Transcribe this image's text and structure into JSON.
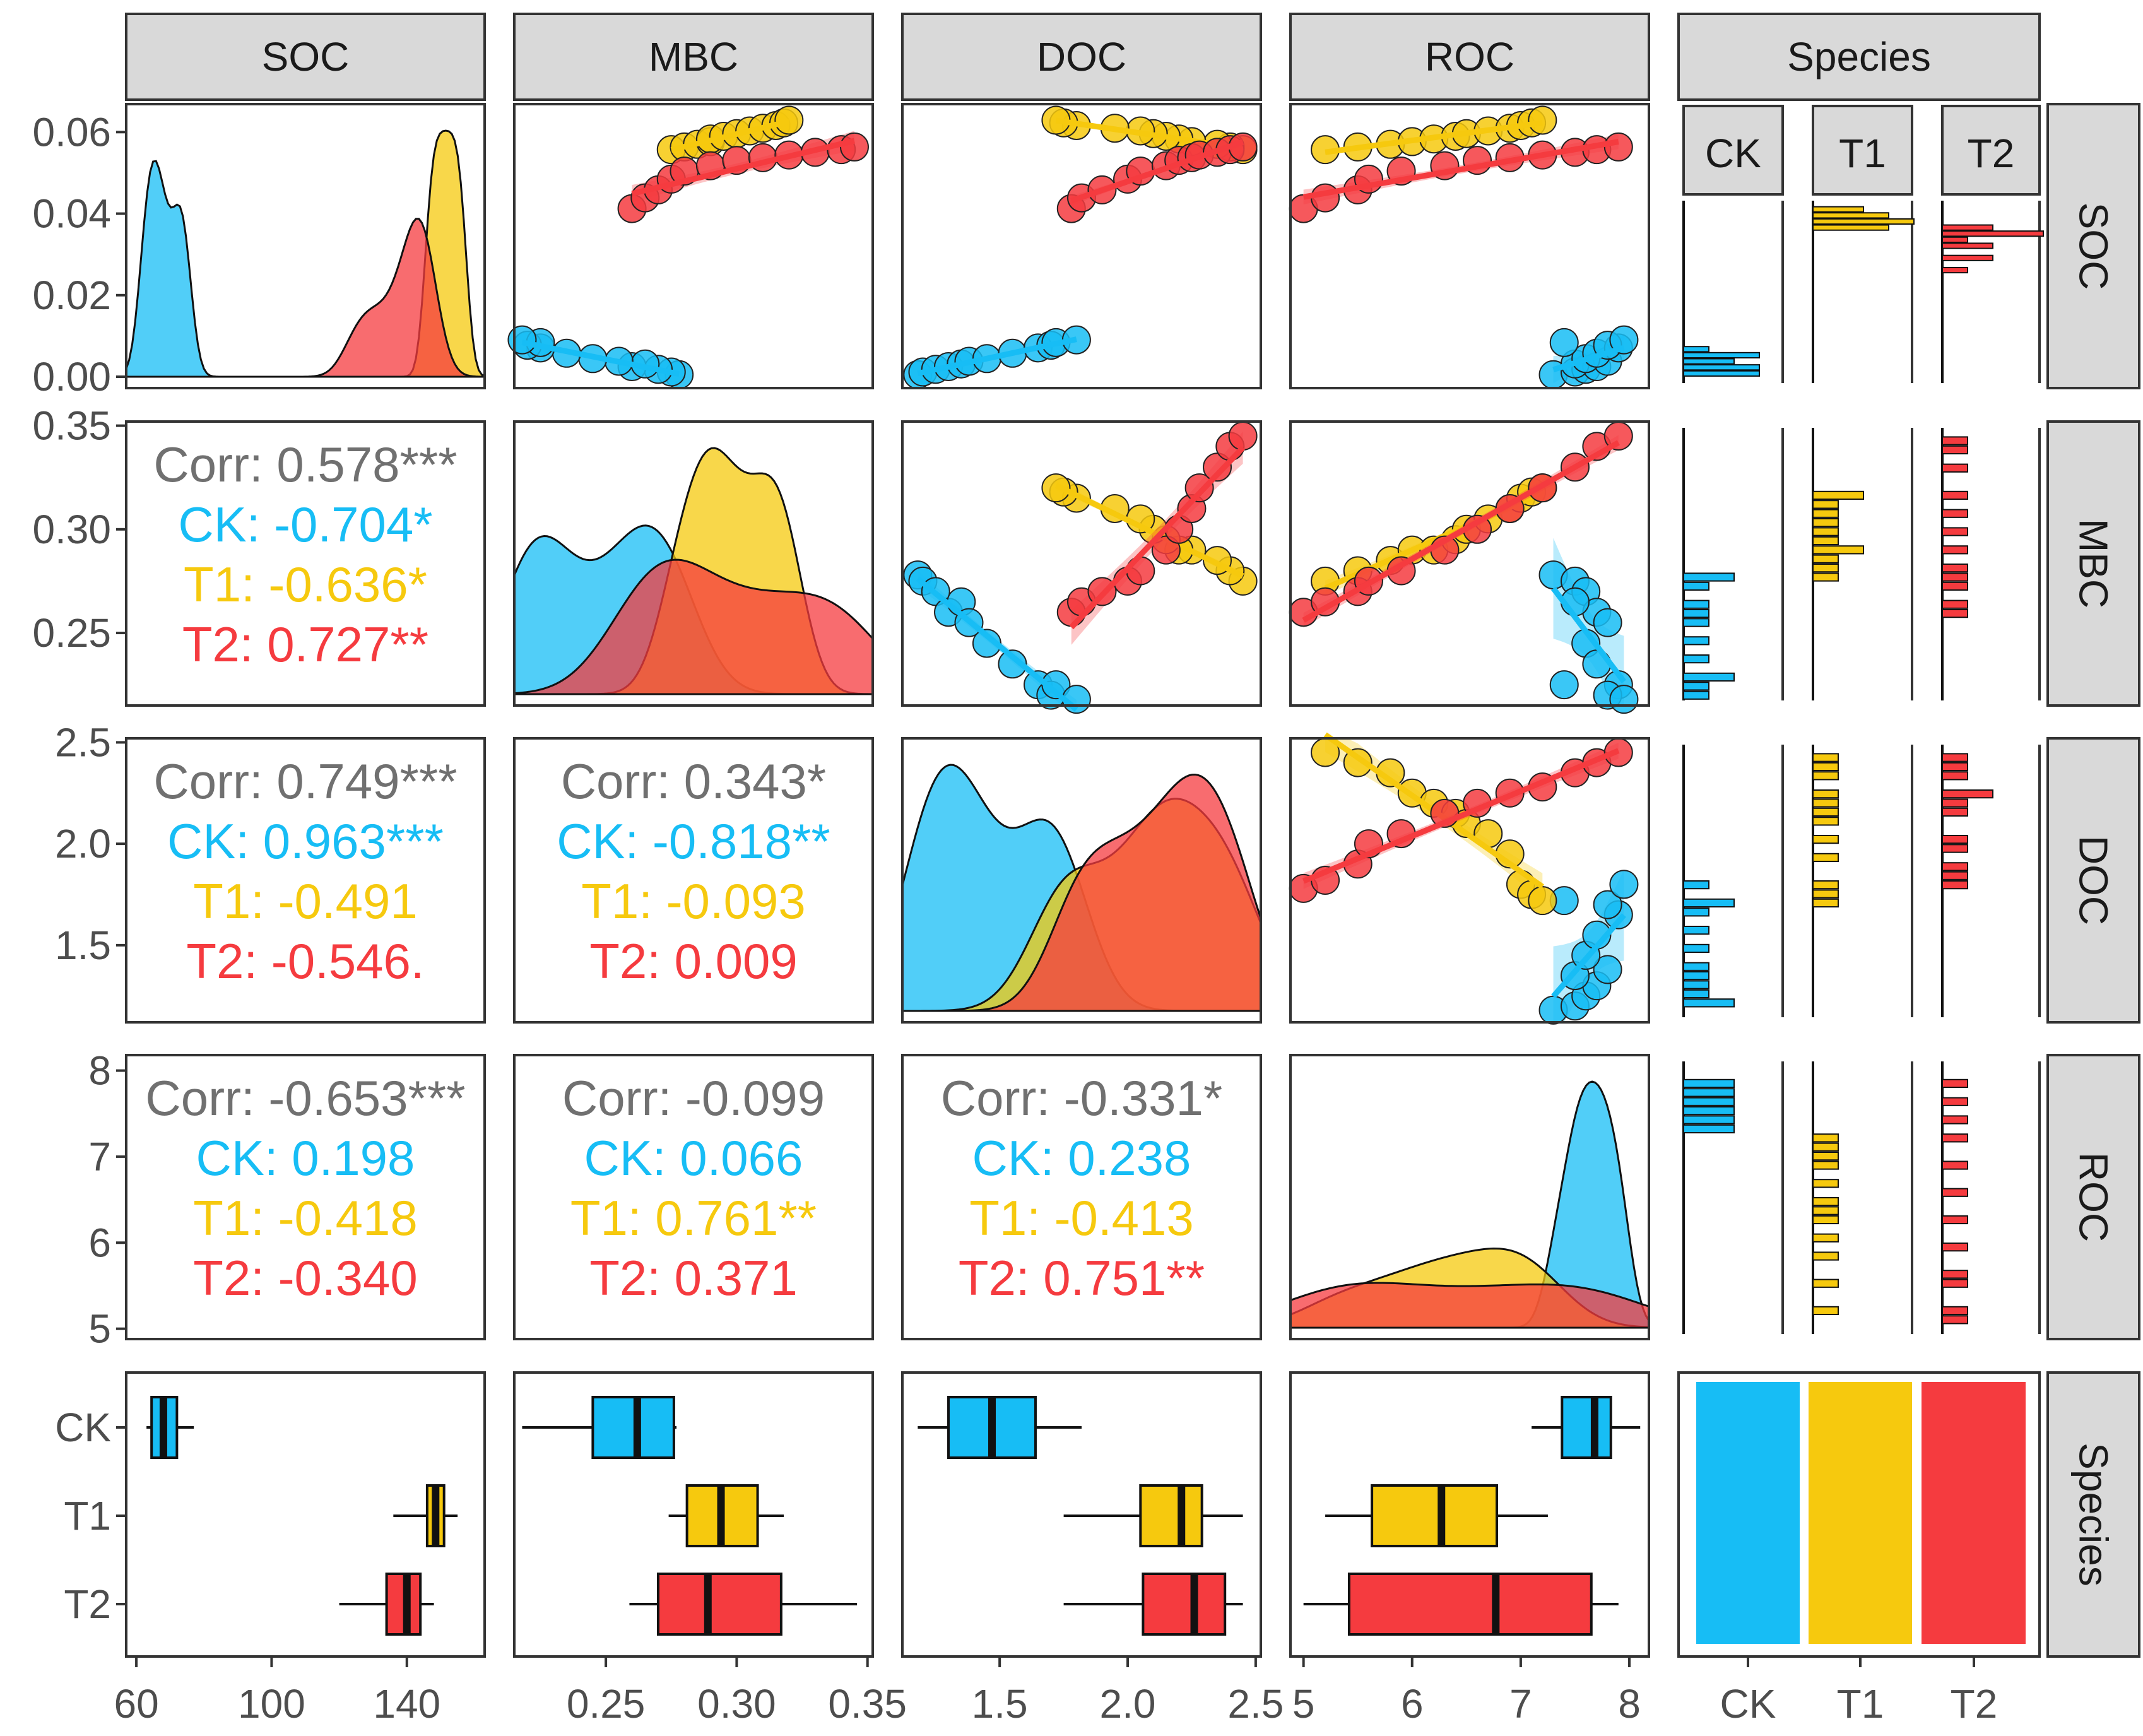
{
  "chart_data": {
    "type": "scatter",
    "title": "",
    "variables": [
      "SOC",
      "MBC",
      "DOC",
      "ROC",
      "Species"
    ],
    "groups": [
      "CK",
      "T1",
      "T2"
    ],
    "colors": {
      "CK": "#17BDF5",
      "T1": "#F6C90E",
      "T2": "#F53B3F",
      "corr": "#707070"
    },
    "column_headers": [
      "SOC",
      "MBC",
      "DOC",
      "ROC",
      "Species"
    ],
    "row_headers": [
      "SOC",
      "MBC",
      "DOC",
      "ROC",
      "Species"
    ],
    "sub_headers": [
      "CK",
      "T1",
      "T2"
    ],
    "axis_ranges": {
      "SOC": [
        57,
        163
      ],
      "MBC": [
        0.215,
        0.352
      ],
      "DOC": [
        1.12,
        2.52
      ],
      "ROC": [
        4.88,
        8.18
      ]
    },
    "density_y_ticks": [
      "0.00",
      "0.02",
      "0.04",
      "0.06"
    ],
    "x_ticks": {
      "SOC": [
        "60",
        "100",
        "140"
      ],
      "MBC": [
        "0.25",
        "0.30",
        "0.35"
      ],
      "DOC": [
        "1.5",
        "2.0",
        "2.5"
      ],
      "ROC": [
        "5",
        "6",
        "7",
        "8"
      ],
      "Species": [
        "CK",
        "T1",
        "T2"
      ]
    },
    "y_ticks": {
      "MBC": [
        "0.25",
        "0.30",
        "0.35"
      ],
      "DOC": [
        "1.5",
        "2.0",
        "2.5"
      ],
      "ROC": [
        "5",
        "6",
        "7",
        "8"
      ],
      "Species": [
        "CK",
        "T1",
        "T2"
      ]
    },
    "correlations": {
      "MBC_SOC": [
        "Corr: 0.578***",
        "CK: -0.704*",
        "T1: -0.636*",
        "T2: 0.727**"
      ],
      "DOC_SOC": [
        "Corr: 0.749***",
        "CK: 0.963***",
        "T1: -0.491",
        "T2: -0.546."
      ],
      "DOC_MBC": [
        "Corr: 0.343*",
        "CK: -0.818**",
        "T1: -0.093",
        "T2: 0.009"
      ],
      "ROC_SOC": [
        "Corr: -0.653***",
        "CK: 0.198",
        "T1: -0.418",
        "T2: -0.340"
      ],
      "ROC_MBC": [
        "Corr: -0.099",
        "CK: 0.066",
        "T1: 0.761**",
        "T2: 0.371"
      ],
      "ROC_DOC": [
        "Corr: -0.331*",
        "CK: 0.238",
        "T1: -0.413",
        "T2: 0.751**"
      ]
    },
    "samples": {
      "CK": [
        [
          62,
          0.278,
          1.18,
          7.3
        ],
        [
          63,
          0.275,
          1.2,
          7.5
        ],
        [
          64,
          0.27,
          1.25,
          7.6
        ],
        [
          65,
          0.26,
          1.3,
          7.7
        ],
        [
          66,
          0.265,
          1.35,
          7.5
        ],
        [
          67,
          0.255,
          1.38,
          7.8
        ],
        [
          68,
          0.245,
          1.45,
          7.6
        ],
        [
          70,
          0.235,
          1.55,
          7.7
        ],
        [
          72,
          0.225,
          1.65,
          7.9
        ],
        [
          73,
          0.22,
          1.7,
          7.8
        ],
        [
          74,
          0.225,
          1.72,
          7.4
        ],
        [
          75,
          0.218,
          1.8,
          7.95
        ]
      ],
      "T1": [
        [
          146,
          0.275,
          2.45,
          5.2
        ],
        [
          147,
          0.28,
          2.4,
          5.5
        ],
        [
          148,
          0.285,
          2.35,
          5.8
        ],
        [
          149,
          0.29,
          2.25,
          6.0
        ],
        [
          150,
          0.29,
          2.2,
          6.2
        ],
        [
          151,
          0.295,
          2.15,
          6.4
        ],
        [
          152,
          0.3,
          2.1,
          6.5
        ],
        [
          153,
          0.305,
          2.05,
          6.7
        ],
        [
          154,
          0.31,
          1.95,
          6.9
        ],
        [
          155,
          0.315,
          1.8,
          7.0
        ],
        [
          156,
          0.318,
          1.75,
          7.1
        ],
        [
          157,
          0.32,
          1.72,
          7.2
        ]
      ],
      "T2": [
        [
          124,
          0.26,
          1.78,
          5.0
        ],
        [
          128,
          0.265,
          1.82,
          5.2
        ],
        [
          131,
          0.27,
          1.9,
          5.5
        ],
        [
          135,
          0.275,
          2.0,
          5.6
        ],
        [
          138,
          0.28,
          2.05,
          5.9
        ],
        [
          140,
          0.29,
          2.15,
          6.3
        ],
        [
          142,
          0.3,
          2.2,
          6.6
        ],
        [
          143,
          0.31,
          2.25,
          6.9
        ],
        [
          144,
          0.32,
          2.28,
          7.2
        ],
        [
          145,
          0.33,
          2.35,
          7.5
        ],
        [
          146,
          0.34,
          2.4,
          7.7
        ],
        [
          147,
          0.345,
          2.45,
          7.9
        ]
      ]
    },
    "boxplots": {
      "SOC": {
        "CK": [
          63,
          64.5,
          68,
          72,
          77
        ],
        "T1": [
          136,
          146,
          148.5,
          151,
          155
        ],
        "T2": [
          120,
          134,
          140,
          144,
          148
        ]
      },
      "MBC": {
        "CK": [
          0.218,
          0.245,
          0.262,
          0.276,
          0.277
        ],
        "T1": [
          0.274,
          0.281,
          0.294,
          0.308,
          0.318
        ],
        "T2": [
          0.259,
          0.27,
          0.289,
          0.317,
          0.346
        ]
      },
      "DOC": {
        "CK": [
          1.18,
          1.3,
          1.47,
          1.64,
          1.82
        ],
        "T1": [
          1.75,
          2.05,
          2.21,
          2.29,
          2.45
        ],
        "T2": [
          1.75,
          2.06,
          2.26,
          2.38,
          2.45
        ]
      },
      "ROC": {
        "CK": [
          7.1,
          7.38,
          7.68,
          7.83,
          8.1
        ],
        "T1": [
          5.2,
          5.63,
          6.27,
          6.78,
          7.25
        ],
        "T2": [
          5.0,
          5.42,
          6.77,
          7.65,
          7.9
        ]
      }
    }
  }
}
